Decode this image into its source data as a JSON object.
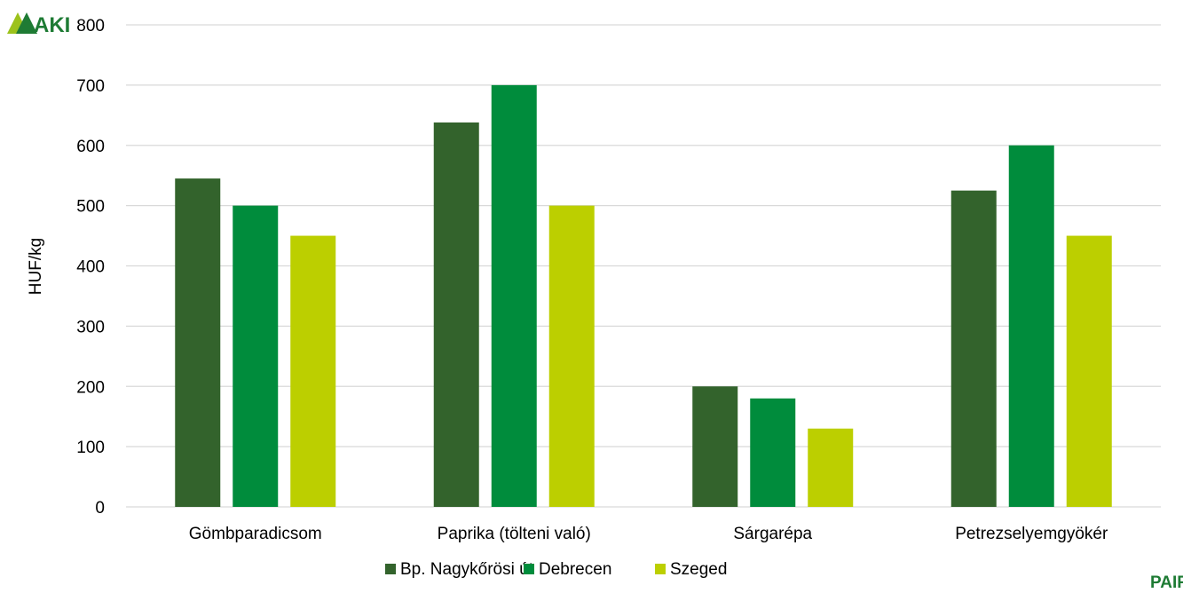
{
  "logos": {
    "top_left": "AKI",
    "bottom_right": "PAIR"
  },
  "colors": {
    "series": [
      "#33632c",
      "#008c3c",
      "#bccf00"
    ],
    "grid": "#d9d9d9",
    "logo_green": "#1e7b34",
    "logo_lime": "#9cc21c"
  },
  "chart_data": {
    "type": "bar",
    "categories": [
      "Gömbparadicsom",
      "Paprika (tölteni való)",
      "Sárgarépa",
      "Petrezselyemgyökér"
    ],
    "series": [
      {
        "name": "Bp. Nagykőrösi út",
        "values": [
          545,
          638,
          200,
          525
        ]
      },
      {
        "name": "Debrecen",
        "values": [
          500,
          700,
          180,
          600
        ]
      },
      {
        "name": "Szeged",
        "values": [
          450,
          500,
          130,
          450
        ]
      }
    ],
    "ylabel": "HUF/kg",
    "xlabel": "",
    "ylim": [
      0,
      800
    ],
    "yticks": [
      0,
      100,
      200,
      300,
      400,
      500,
      600,
      700,
      800
    ],
    "grid": true,
    "legend": "bottom"
  }
}
